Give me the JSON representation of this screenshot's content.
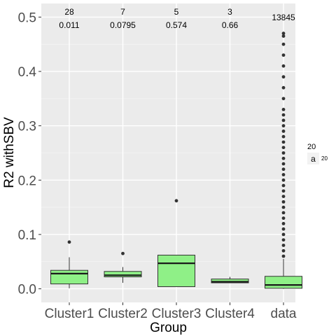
{
  "chart_data": {
    "type": "box",
    "xlabel": "Group",
    "ylabel": "R2 withSBV",
    "ylim": [
      -0.025,
      0.525
    ],
    "yticks": [
      0.0,
      0.1,
      0.2,
      0.3,
      0.4,
      0.5
    ],
    "ytick_labels": [
      "0.0",
      "0.1",
      "0.2",
      "0.3",
      "0.4",
      "0.5"
    ],
    "categories": [
      "Cluster1",
      "Cluster2",
      "Cluster3",
      "Cluster4",
      "data"
    ],
    "fill_color": "#8ff087",
    "panel_color": "#ebebeb",
    "grid": true,
    "boxes": [
      {
        "group": "Cluster1",
        "n": "28",
        "median_label": "0.011",
        "q1": 0.009,
        "median": 0.028,
        "q3": 0.034,
        "whisker_low": 0.001,
        "whisker_high": 0.058,
        "outliers": [
          0.086
        ]
      },
      {
        "group": "Cluster2",
        "n": "7",
        "median_label": "0.0795",
        "q1": 0.022,
        "median": 0.025,
        "q3": 0.032,
        "whisker_low": 0.011,
        "whisker_high": 0.04,
        "outliers": [
          0.065
        ]
      },
      {
        "group": "Cluster3",
        "n": "5",
        "median_label": "0.574",
        "q1": 0.004,
        "median": 0.047,
        "q3": 0.062,
        "whisker_low": 0.004,
        "whisker_high": 0.062,
        "outliers": [
          0.162
        ]
      },
      {
        "group": "Cluster4",
        "n": "3",
        "median_label": "0.66",
        "q1": 0.011,
        "median": 0.013,
        "q3": 0.018,
        "whisker_low": 0.011,
        "whisker_high": 0.022,
        "outliers": []
      },
      {
        "group": "data",
        "n": "13845",
        "median_label": "",
        "q1": 0.001,
        "median": 0.007,
        "q3": 0.023,
        "whisker_low": 0.0,
        "whisker_high": 0.055,
        "outliers": [
          0.06,
          0.07,
          0.08,
          0.09,
          0.1,
          0.11,
          0.12,
          0.13,
          0.14,
          0.15,
          0.16,
          0.17,
          0.18,
          0.19,
          0.2,
          0.21,
          0.22,
          0.23,
          0.24,
          0.25,
          0.26,
          0.27,
          0.28,
          0.29,
          0.3,
          0.31,
          0.32,
          0.33,
          0.35,
          0.37,
          0.39,
          0.41,
          0.43,
          0.45,
          0.465,
          0.47
        ]
      }
    ],
    "legend": {
      "title": "20",
      "key_glyph": "a",
      "label": "20",
      "placement": "right"
    }
  }
}
